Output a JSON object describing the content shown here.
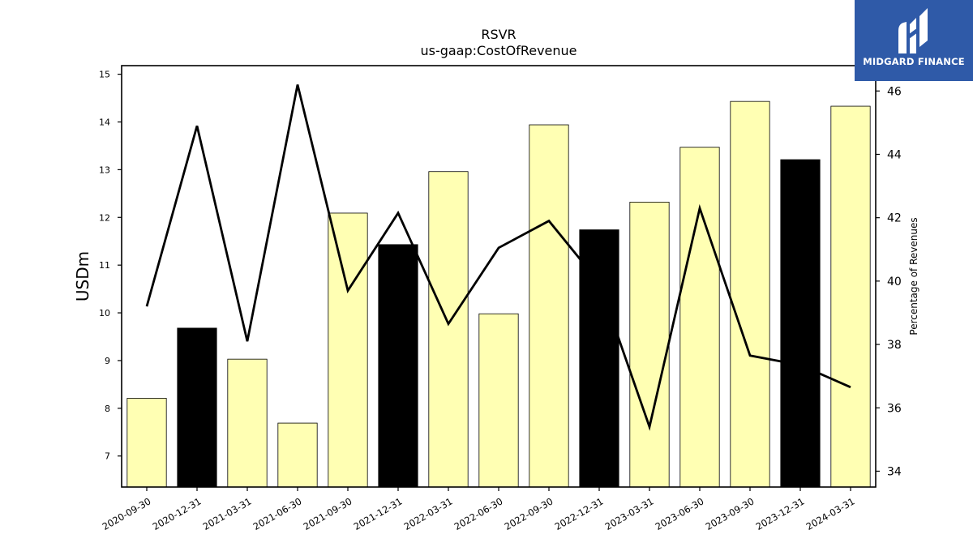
{
  "chart_data": {
    "type": "bar",
    "title": "RSVR",
    "subtitle": "us-gaap:CostOfRevenue",
    "ylabel": "USDm",
    "y2label": "Percentage of Revenues",
    "categories": [
      "2020-09-30",
      "2020-12-31",
      "2021-03-31",
      "2021-06-30",
      "2021-09-30",
      "2021-12-31",
      "2022-03-31",
      "2022-06-30",
      "2022-09-30",
      "2022-12-31",
      "2023-03-31",
      "2023-06-30",
      "2023-09-30",
      "2023-12-31",
      "2024-03-31"
    ],
    "series": [
      {
        "type": "bar",
        "axis": "left",
        "values": [
          8.21,
          9.68,
          9.03,
          7.69,
          12.09,
          11.43,
          12.96,
          9.98,
          13.94,
          11.74,
          12.32,
          13.47,
          14.43,
          13.21,
          14.33
        ],
        "colors": [
          "#ffffb3",
          "#000000",
          "#ffffb3",
          "#ffffb3",
          "#ffffb3",
          "#000000",
          "#ffffb3",
          "#ffffb3",
          "#ffffb3",
          "#000000",
          "#ffffb3",
          "#ffffb3",
          "#ffffb3",
          "#000000",
          "#ffffb3"
        ]
      },
      {
        "type": "line",
        "axis": "right",
        "color": "#000000",
        "values": [
          39.2,
          44.9,
          38.1,
          46.2,
          39.7,
          42.15,
          38.65,
          41.05,
          41.9,
          39.95,
          35.4,
          42.3,
          37.65,
          37.35,
          36.65
        ]
      }
    ],
    "ylim": [
      6.35,
      15.18
    ],
    "y_ticks": [
      7,
      8,
      9,
      10,
      11,
      12,
      13,
      14,
      15
    ],
    "y2lim": [
      33.5,
      46.8
    ],
    "y2_ticks": [
      34,
      36,
      38,
      40,
      42,
      44,
      46
    ],
    "grid": false,
    "legend": "none"
  },
  "logo": {
    "text": "MIDGARD FINANCE",
    "color": "#2f5aa8"
  }
}
